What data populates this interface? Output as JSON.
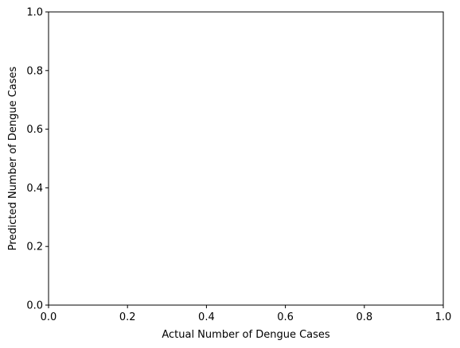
{
  "chart_data": {
    "type": "scatter",
    "title": "",
    "xlabel": "Actual Number of Dengue Cases",
    "ylabel": "Predicted Number of Dengue Cases",
    "xlim": [
      0.0,
      1.0
    ],
    "ylim": [
      0.0,
      1.0
    ],
    "xticks": [
      0.0,
      0.2,
      0.4,
      0.6,
      0.8,
      1.0
    ],
    "yticks": [
      0.0,
      0.2,
      0.4,
      0.6,
      0.8,
      1.0
    ],
    "xtick_labels": [
      "0.0",
      "0.2",
      "0.4",
      "0.6",
      "0.8",
      "1.0"
    ],
    "ytick_labels": [
      "0.0",
      "0.2",
      "0.4",
      "0.6",
      "0.8",
      "1.0"
    ],
    "series": [],
    "grid": false
  }
}
